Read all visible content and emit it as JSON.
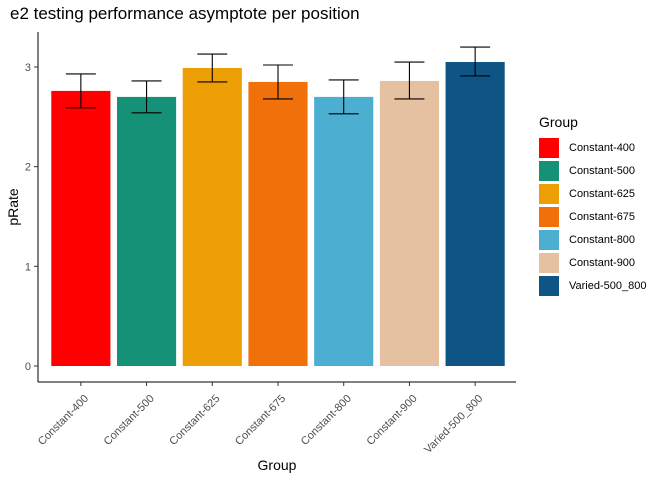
{
  "chart_data": {
    "type": "bar",
    "title": "e2 testing performance asymptote per position",
    "xlabel": "Group",
    "ylabel": "pRate",
    "categories": [
      "Constant-400",
      "Constant-500",
      "Constant-625",
      "Constant-675",
      "Constant-800",
      "Constant-900",
      "Varied-500_800"
    ],
    "values": [
      2.76,
      2.7,
      2.99,
      2.85,
      2.7,
      2.86,
      3.05
    ],
    "error_low": [
      2.59,
      2.54,
      2.85,
      2.68,
      2.53,
      2.68,
      2.91
    ],
    "error_high": [
      2.93,
      2.86,
      3.13,
      3.02,
      2.87,
      3.05,
      3.2
    ],
    "colors": [
      "#FF0000",
      "#159178",
      "#EE9F05",
      "#F1700A",
      "#4CAFD1",
      "#E5C1A1",
      "#0E5586"
    ],
    "ylim": [
      0,
      3.35
    ],
    "yticks": [
      "0",
      "1",
      "2",
      "3"
    ],
    "grid": false,
    "legend": {
      "title": "Group",
      "position": "right",
      "entries": [
        "Constant-400",
        "Constant-500",
        "Constant-625",
        "Constant-675",
        "Constant-800",
        "Constant-900",
        "Varied-500_800"
      ]
    }
  }
}
